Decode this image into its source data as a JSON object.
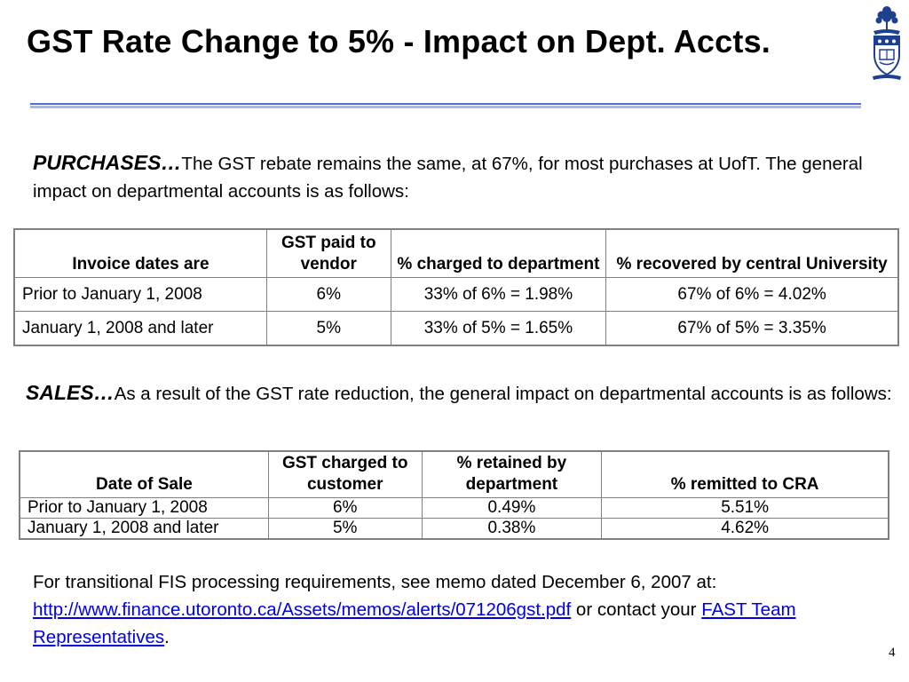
{
  "title": "GST Rate Change to 5% - Impact on Dept. Accts.",
  "logo": {
    "icon": "university-crest-icon"
  },
  "purchases": {
    "lead": "PURCHASES…",
    "text": "The GST rebate remains the same, at 67%, for most purchases at UofT.  The general impact on departmental accounts is as follows:"
  },
  "purchases_table": {
    "headers": [
      "Invoice dates are",
      "GST paid to vendor",
      "% charged to department",
      "% recovered by central University"
    ],
    "rows": [
      [
        "Prior to January 1, 2008",
        "6%",
        "33% of 6% = 1.98%",
        "67% of 6% = 4.02%"
      ],
      [
        "January 1, 2008 and later",
        "5%",
        "33% of 5% = 1.65%",
        "67% of 5% = 3.35%"
      ]
    ]
  },
  "sales": {
    "lead": "SALES…",
    "text": "As a result of the GST rate reduction, the general impact on departmental accounts is as follows:"
  },
  "sales_table": {
    "headers": [
      "Date of Sale",
      "GST charged to customer",
      "% retained by department",
      "% remitted to CRA"
    ],
    "rows": [
      [
        "Prior to January 1, 2008",
        "6%",
        "0.49%",
        "5.51%"
      ],
      [
        "January 1, 2008 and later",
        "5%",
        "0.38%",
        "4.62%"
      ]
    ]
  },
  "footer": {
    "text_before": "For transitional FIS processing requirements, see memo dated December 6, 2007 at: ",
    "memo_link": "http://www.finance.utoronto.ca/Assets/memos/alerts/071206gst.pdf",
    "text_middle": " or contact your ",
    "team_link": "FAST Team Representatives",
    "text_after": "."
  },
  "page_number": "4",
  "colors": {
    "rule_dark": "#4f6fd6",
    "rule_light": "#a8b8ee",
    "link": "#0000e6",
    "crest_blue": "#1f3f8f"
  }
}
